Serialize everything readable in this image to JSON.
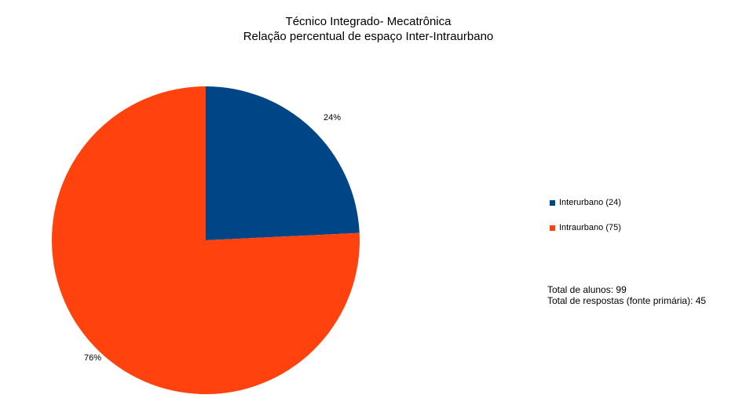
{
  "chart_data": {
    "type": "pie",
    "title": "Técnico Integrado- Mecatrônica",
    "subtitle": "Relação percentual de espaço Inter-Intraurbano",
    "slices": [
      {
        "name": "Interurbano (24)",
        "value": 24,
        "percent_label": "24%",
        "color": "#004586"
      },
      {
        "name": "Intraurbano (75)",
        "value": 75,
        "percent_label": "76%",
        "color": "#ff420e"
      }
    ],
    "legend_position": "right"
  },
  "notes": {
    "total_alunos": "Total de alunos: 99",
    "total_respostas": "Total de respostas (fonte primária): 45"
  }
}
